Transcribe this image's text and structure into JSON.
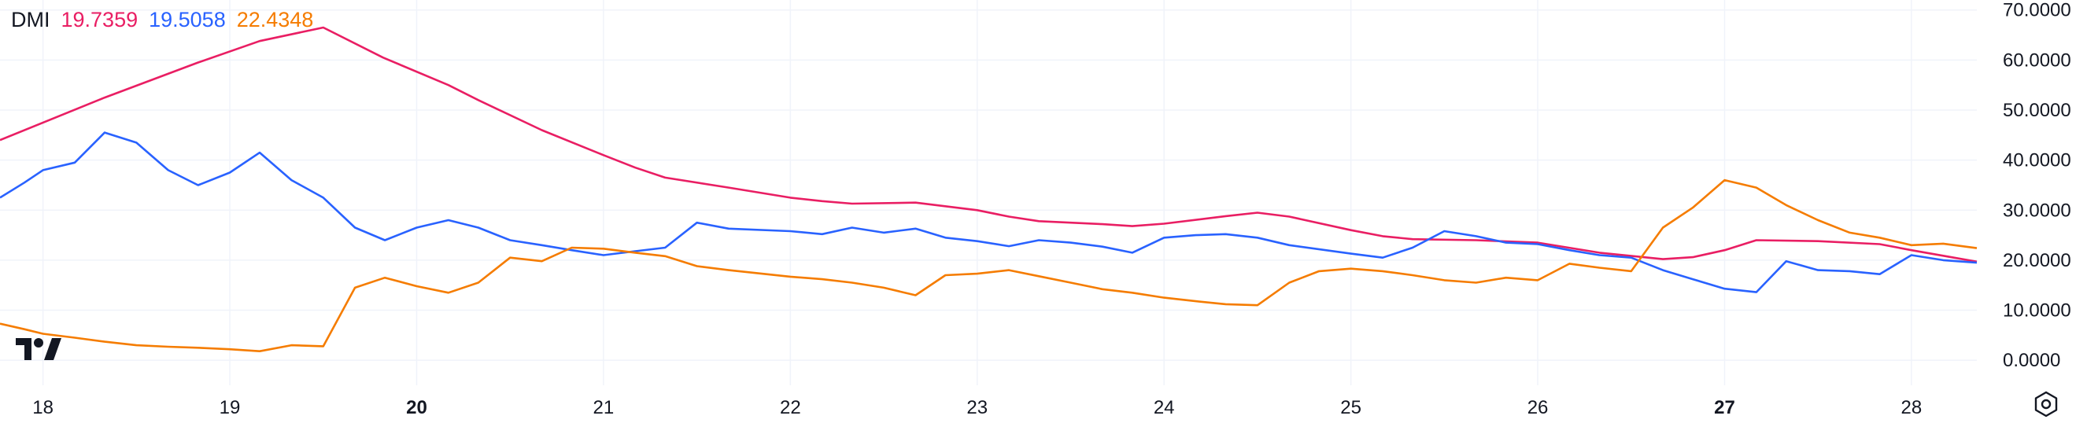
{
  "legend": {
    "indicator": "DMI",
    "values": [
      "19.7359",
      "19.5058",
      "22.4348"
    ]
  },
  "colors": {
    "plus_di": "#e91e63",
    "minus_di": "#2962ff",
    "adx": "#f57c00",
    "grid": "#f0f3fa",
    "text": "#131722"
  },
  "icons": {
    "logo": "tradingview-logo-icon",
    "settings": "settings-gear-icon"
  },
  "chart_data": {
    "type": "line",
    "title": "",
    "xlabel": "",
    "ylabel": "",
    "ylim": [
      -5,
      72
    ],
    "xlim": [
      17.77,
      28.35
    ],
    "grid": true,
    "legend_placement": "top-left",
    "y_ticks": [
      "70.0000",
      "60.0000",
      "50.0000",
      "40.0000",
      "30.0000",
      "20.0000",
      "10.0000",
      "0.0000"
    ],
    "y_tick_values": [
      70,
      60,
      50,
      40,
      30,
      20,
      10,
      0
    ],
    "x_ticks": [
      {
        "value": 18,
        "label": "18",
        "bold": false
      },
      {
        "value": 19,
        "label": "19",
        "bold": false
      },
      {
        "value": 20,
        "label": "20",
        "bold": true
      },
      {
        "value": 21,
        "label": "21",
        "bold": false
      },
      {
        "value": 22,
        "label": "22",
        "bold": false
      },
      {
        "value": 23,
        "label": "23",
        "bold": false
      },
      {
        "value": 24,
        "label": "24",
        "bold": false
      },
      {
        "value": 25,
        "label": "25",
        "bold": false
      },
      {
        "value": 26,
        "label": "26",
        "bold": false
      },
      {
        "value": 27,
        "label": "27",
        "bold": true
      },
      {
        "value": 28,
        "label": "28",
        "bold": false
      }
    ],
    "series": [
      {
        "key": "plus_di",
        "x": [
          17.77,
          18.33,
          18.83,
          19.16,
          19.5,
          19.82,
          20.17,
          20.33,
          20.67,
          21.0,
          21.17,
          21.33,
          21.67,
          22.0,
          22.17,
          22.33,
          22.67,
          23.0,
          23.17,
          23.33,
          23.67,
          23.83,
          24.0,
          24.33,
          24.5,
          24.67,
          25.0,
          25.17,
          25.33,
          25.67,
          26.0,
          26.33,
          26.67,
          26.83,
          27.0,
          27.17,
          27.5,
          27.83,
          28.0,
          28.35
        ],
        "y": [
          44,
          52.5,
          59.5,
          63.8,
          66.5,
          60.5,
          55,
          52,
          46,
          41,
          38.5,
          36.5,
          34.5,
          32.5,
          31.8,
          31.3,
          31.5,
          30,
          28.7,
          27.8,
          27.2,
          26.8,
          27.3,
          28.8,
          29.5,
          28.7,
          26,
          24.8,
          24.2,
          24,
          23.5,
          21.5,
          20.2,
          20.6,
          22,
          24,
          23.8,
          23.2,
          22,
          19.7
        ]
      },
      {
        "key": "minus_di",
        "x": [
          17.77,
          17.9,
          18.0,
          18.17,
          18.33,
          18.5,
          18.67,
          18.83,
          19.0,
          19.16,
          19.33,
          19.5,
          19.67,
          19.83,
          20.0,
          20.17,
          20.33,
          20.5,
          20.67,
          20.83,
          21.0,
          21.17,
          21.33,
          21.5,
          21.67,
          22.0,
          22.17,
          22.33,
          22.5,
          22.67,
          22.83,
          23.0,
          23.17,
          23.33,
          23.5,
          23.67,
          23.83,
          24.0,
          24.17,
          24.33,
          24.5,
          24.67,
          25.0,
          25.17,
          25.33,
          25.5,
          25.67,
          25.83,
          26.0,
          26.17,
          26.33,
          26.5,
          26.67,
          26.83,
          27.0,
          27.17,
          27.33,
          27.5,
          27.67,
          27.83,
          28.0,
          28.17,
          28.35
        ],
        "y": [
          32.5,
          35.5,
          38,
          39.5,
          45.5,
          43.5,
          38,
          35,
          37.5,
          41.5,
          36,
          32.5,
          26.5,
          24,
          26.5,
          28,
          26.5,
          24,
          23,
          22,
          21,
          21.8,
          22.5,
          27.5,
          26.3,
          25.8,
          25.2,
          26.5,
          25.5,
          26.3,
          24.5,
          23.8,
          22.8,
          24,
          23.5,
          22.7,
          21.5,
          24.5,
          25,
          25.2,
          24.5,
          23,
          21.3,
          20.5,
          22.5,
          25.8,
          24.8,
          23.5,
          23.2,
          22,
          21,
          20.5,
          18,
          16.2,
          14.3,
          13.6,
          19.8,
          18,
          17.8,
          17.2,
          21,
          20,
          19.5
        ]
      },
      {
        "key": "adx",
        "x": [
          17.77,
          17.9,
          18.0,
          18.17,
          18.33,
          18.5,
          18.67,
          18.83,
          19.0,
          19.16,
          19.33,
          19.5,
          19.67,
          19.83,
          20.0,
          20.17,
          20.33,
          20.5,
          20.67,
          20.83,
          21.0,
          21.17,
          21.33,
          21.5,
          21.67,
          22.0,
          22.17,
          22.33,
          22.5,
          22.67,
          22.83,
          23.0,
          23.17,
          23.33,
          23.5,
          23.67,
          23.83,
          24.0,
          24.17,
          24.33,
          24.5,
          24.67,
          24.83,
          25.0,
          25.17,
          25.33,
          25.5,
          25.67,
          25.83,
          26.0,
          26.17,
          26.33,
          26.5,
          26.67,
          26.83,
          27.0,
          27.17,
          27.33,
          27.5,
          27.67,
          27.83,
          28.0,
          28.17,
          28.35
        ],
        "y": [
          7.3,
          6.2,
          5.3,
          4.5,
          3.7,
          3.0,
          2.7,
          2.5,
          2.2,
          1.8,
          3.0,
          2.8,
          14.5,
          16.5,
          14.8,
          13.5,
          15.5,
          20.5,
          19.8,
          22.5,
          22.3,
          21.5,
          20.8,
          18.8,
          18,
          16.7,
          16.2,
          15.5,
          14.5,
          13,
          17,
          17.3,
          18,
          16.8,
          15.5,
          14.2,
          13.5,
          12.5,
          11.8,
          11.2,
          11,
          15.5,
          17.8,
          18.3,
          17.8,
          17,
          16,
          15.5,
          16.5,
          16,
          19.3,
          18.5,
          17.8,
          26.5,
          30.5,
          36,
          34.5,
          31,
          28,
          25.5,
          24.5,
          23,
          23.3,
          22.4
        ]
      }
    ]
  }
}
